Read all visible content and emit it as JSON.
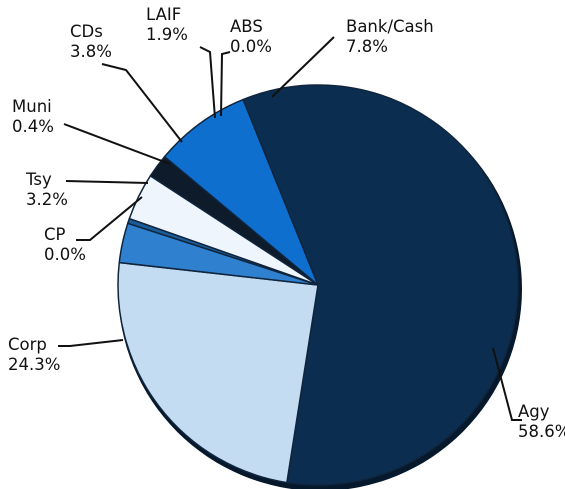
{
  "chart_data": {
    "type": "pie",
    "title": "",
    "slices": [
      {
        "name": "Agy",
        "value": 58.6,
        "label": "58.6%",
        "color": "#0b2d4f"
      },
      {
        "name": "Corp",
        "value": 24.3,
        "label": "24.3%",
        "color": "#c3dcf2"
      },
      {
        "name": "CP",
        "value": 0.0,
        "label": "0.0%",
        "color": "#a9cdef"
      },
      {
        "name": "Tsy",
        "value": 3.2,
        "label": "3.2%",
        "color": "#2f80cf"
      },
      {
        "name": "Muni",
        "value": 0.4,
        "label": "0.4%",
        "color": "#1b5b98"
      },
      {
        "name": "CDs",
        "value": 3.8,
        "label": "3.8%",
        "color": "#eef5fc"
      },
      {
        "name": "LAIF",
        "value": 1.9,
        "label": "1.9%",
        "color": "#0d1b2b"
      },
      {
        "name": "ABS",
        "value": 0.0,
        "label": "0.0%",
        "color": "#234c7a"
      },
      {
        "name": "Bank/Cash",
        "value": 7.8,
        "label": "7.8%",
        "color": "#0e6fcf"
      }
    ]
  }
}
